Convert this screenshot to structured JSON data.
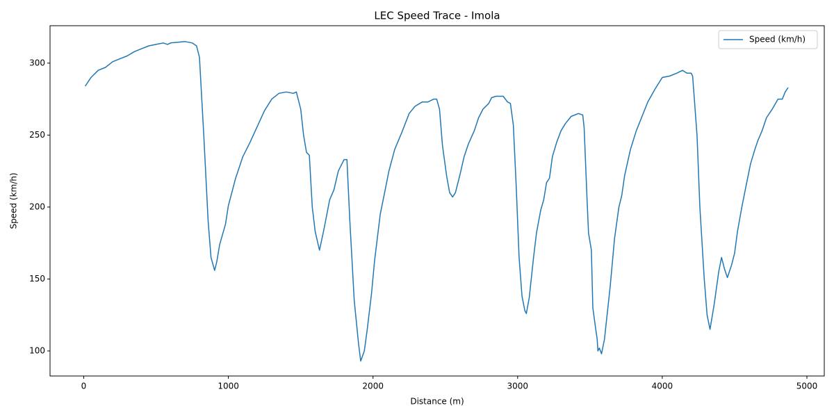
{
  "chart_data": {
    "type": "line",
    "title": "LEC Speed Trace - Imola",
    "xlabel": "Distance (m)",
    "ylabel": "Speed (km/h)",
    "x": [
      10,
      50,
      100,
      150,
      200,
      250,
      300,
      350,
      400,
      450,
      500,
      550,
      580,
      600,
      700,
      750,
      780,
      800,
      830,
      860,
      880,
      905,
      920,
      940,
      980,
      1000,
      1050,
      1100,
      1150,
      1200,
      1250,
      1300,
      1350,
      1400,
      1450,
      1470,
      1500,
      1520,
      1540,
      1560,
      1580,
      1600,
      1630,
      1660,
      1700,
      1730,
      1760,
      1800,
      1820,
      1840,
      1870,
      1900,
      1915,
      1940,
      1960,
      1990,
      2010,
      2050,
      2080,
      2110,
      2150,
      2200,
      2250,
      2290,
      2340,
      2380,
      2420,
      2440,
      2460,
      2480,
      2510,
      2530,
      2550,
      2570,
      2600,
      2630,
      2660,
      2700,
      2730,
      2760,
      2800,
      2820,
      2850,
      2900,
      2930,
      2950,
      2970,
      2990,
      3010,
      3030,
      3050,
      3060,
      3080,
      3110,
      3130,
      3160,
      3180,
      3200,
      3220,
      3240,
      3270,
      3300,
      3330,
      3370,
      3420,
      3450,
      3460,
      3480,
      3490,
      3510,
      3520,
      3540,
      3550,
      3555,
      3565,
      3580,
      3600,
      3640,
      3670,
      3700,
      3720,
      3740,
      3780,
      3820,
      3860,
      3900,
      3950,
      4000,
      4050,
      4100,
      4140,
      4170,
      4200,
      4210,
      4240,
      4260,
      4290,
      4310,
      4330,
      4360,
      4390,
      4410,
      4430,
      4450,
      4480,
      4500,
      4520,
      4550,
      4580,
      4610,
      4640,
      4660,
      4690,
      4720,
      4760,
      4800,
      4830,
      4850,
      4870
    ],
    "series": [
      {
        "name": "Speed (km/h)",
        "color": "#1f77b4",
        "values": [
          284,
          290,
          295,
          297,
          301,
          303,
          305,
          308,
          310,
          312,
          313,
          314,
          313,
          314,
          315,
          314,
          312,
          304,
          250,
          190,
          165,
          156,
          162,
          174,
          188,
          201,
          220,
          235,
          245,
          256,
          267,
          275,
          279,
          280,
          279,
          280,
          268,
          250,
          238,
          236,
          200,
          183,
          170,
          184,
          205,
          212,
          225,
          233,
          233,
          190,
          135,
          105,
          93,
          100,
          115,
          140,
          162,
          195,
          210,
          225,
          240,
          252,
          265,
          270,
          273,
          273,
          275,
          275,
          268,
          243,
          221,
          210,
          207,
          210,
          222,
          235,
          244,
          253,
          262,
          268,
          272,
          276,
          277,
          277,
          273,
          272,
          257,
          215,
          165,
          138,
          128,
          126,
          137,
          165,
          182,
          198,
          205,
          217,
          220,
          235,
          245,
          253,
          258,
          263,
          265,
          264,
          255,
          205,
          182,
          170,
          130,
          115,
          108,
          100,
          102,
          98,
          108,
          145,
          178,
          200,
          208,
          222,
          240,
          253,
          263,
          273,
          282,
          290,
          291,
          293,
          295,
          293,
          293,
          291,
          250,
          200,
          150,
          125,
          115,
          133,
          155,
          165,
          157,
          151,
          160,
          168,
          183,
          200,
          215,
          230,
          240,
          246,
          253,
          262,
          268,
          275,
          275,
          280,
          283
        ]
      }
    ],
    "xlim": [
      -233,
      5120
    ],
    "ylim": [
      82.6,
      326
    ],
    "xticks": [
      0,
      1000,
      2000,
      3000,
      4000,
      5000
    ],
    "yticks": [
      100,
      150,
      200,
      250,
      300
    ],
    "legend": "upper right"
  }
}
